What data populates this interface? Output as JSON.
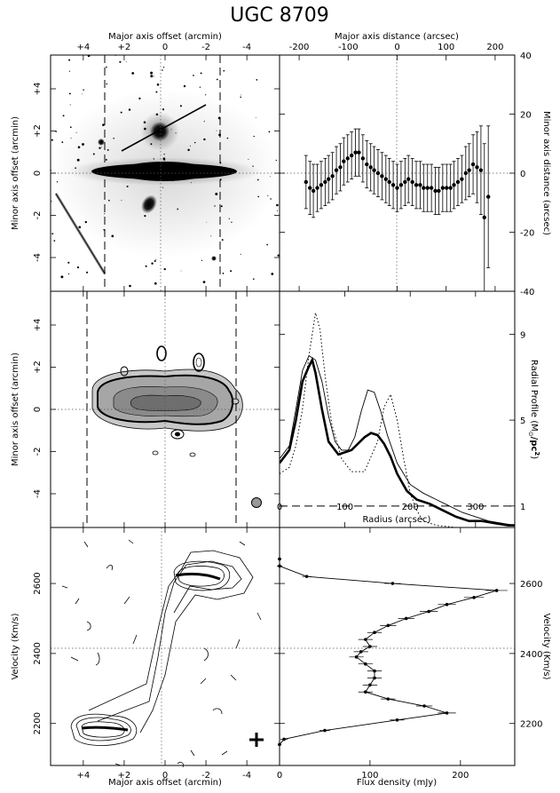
{
  "title": "UGC 8709",
  "chart_data": [
    {
      "panel": "optical-image",
      "type": "image",
      "xlabel_top": "Major axis offset (arcmin)",
      "ylabel": "Minor axis offset (arcmin)",
      "xlim": [
        5.6,
        -5.6
      ],
      "ylim": [
        -5.6,
        5.6
      ],
      "xticks": [
        "+4",
        "+2",
        "0",
        "-2",
        "-4"
      ],
      "yticks": [
        "+4",
        "+2",
        "0",
        "-2",
        "-4"
      ]
    },
    {
      "panel": "warp-offset",
      "type": "scatter",
      "xlabel_top": "Major axis distance (arcsec)",
      "ylabel": "Minor axis distance (arcsec)",
      "xlim": [
        -240,
        240
      ],
      "ylim": [
        -40,
        40
      ],
      "xticks": [
        "-200",
        "-100",
        "0",
        "100",
        "200"
      ],
      "yticks": [
        "40",
        "20",
        "0",
        "-20",
        "-40"
      ],
      "x": [
        -186,
        -178,
        -171,
        -163,
        -155,
        -147,
        -140,
        -132,
        -124,
        -116,
        -109,
        -101,
        -93,
        -85,
        -78,
        -70,
        -62,
        -54,
        -47,
        -39,
        -31,
        -23,
        -16,
        -8,
        0,
        8,
        16,
        23,
        31,
        39,
        47,
        54,
        62,
        70,
        78,
        85,
        93,
        101,
        109,
        116,
        124,
        132,
        140,
        147,
        155,
        163,
        171,
        178,
        186
      ],
      "y": [
        -3,
        -5,
        -6,
        -5,
        -4,
        -3,
        -2,
        -1,
        1,
        2,
        4,
        5,
        6,
        7,
        7,
        5,
        3,
        2,
        1,
        0,
        -1,
        -2,
        -3,
        -4,
        -5,
        -4,
        -3,
        -2,
        -3,
        -4,
        -4,
        -5,
        -5,
        -5,
        -6,
        -6,
        -5,
        -5,
        -5,
        -4,
        -3,
        -2,
        0,
        1,
        3,
        2,
        1,
        -15,
        -8
      ],
      "yerr": [
        9,
        9,
        9,
        8,
        8,
        8,
        8,
        8,
        8,
        8,
        8,
        8,
        8,
        8,
        8,
        8,
        8,
        8,
        8,
        8,
        8,
        8,
        8,
        8,
        8,
        8,
        8,
        8,
        8,
        8,
        8,
        8,
        8,
        8,
        8,
        8,
        8,
        8,
        8,
        8,
        8,
        8,
        9,
        9,
        10,
        12,
        15,
        25,
        24
      ]
    },
    {
      "panel": "hi-total-intensity",
      "type": "contour",
      "ylabel": "Minor axis offset (arcmin)",
      "xlim": [
        5.6,
        -5.6
      ],
      "ylim": [
        -5.6,
        5.6
      ],
      "yticks": [
        "+4",
        "+2",
        "0",
        "-2",
        "-4"
      ]
    },
    {
      "panel": "radial-profile",
      "type": "line",
      "xlabel": "Radius (arcsec)",
      "ylabel": "Radial Profile (M",
      "ylabel_sub": "⊙",
      "ylabel_tail": "/pc",
      "ylabel_sup": "2",
      "ylabel_close": ")",
      "xlim": [
        0,
        360
      ],
      "ylim": [
        0,
        11
      ],
      "xticks": [
        "0",
        "100",
        "200",
        "300"
      ],
      "yticks": [
        "1",
        "5",
        "9"
      ],
      "hline": 1,
      "series": [
        {
          "style": "thick",
          "x": [
            0,
            15,
            25,
            35,
            45,
            50,
            55,
            65,
            75,
            90,
            110,
            130,
            140,
            150,
            160,
            170,
            180,
            195,
            210,
            230,
            250,
            270,
            290,
            310,
            330,
            350,
            360
          ],
          "y": [
            3.0,
            3.6,
            5.0,
            6.8,
            7.5,
            7.8,
            7.2,
            5.5,
            4.0,
            3.4,
            3.6,
            4.2,
            4.4,
            4.3,
            3.9,
            3.3,
            2.5,
            1.7,
            1.3,
            1.1,
            0.8,
            0.5,
            0.3,
            0.3,
            0.2,
            0.1,
            0.1
          ]
        },
        {
          "style": "thin",
          "x": [
            0,
            15,
            25,
            35,
            45,
            55,
            65,
            75,
            85,
            95,
            105,
            115,
            125,
            135,
            145,
            155,
            165,
            180,
            200,
            220,
            240,
            260,
            280,
            300,
            320,
            340,
            360
          ],
          "y": [
            3.2,
            3.8,
            5.5,
            7.3,
            8.0,
            7.8,
            6.8,
            5.2,
            4.0,
            3.6,
            3.6,
            4.2,
            5.4,
            6.4,
            6.3,
            5.4,
            4.3,
            3.0,
            2.0,
            1.6,
            1.3,
            1.0,
            0.7,
            0.5,
            0.3,
            0.2,
            0.1
          ]
        },
        {
          "style": "dotted",
          "x": [
            0,
            15,
            25,
            35,
            45,
            55,
            62,
            70,
            80,
            95,
            110,
            130,
            150,
            160,
            170,
            180,
            190,
            200,
            210,
            220,
            240,
            270,
            300
          ],
          "y": [
            2.5,
            2.8,
            3.8,
            5.5,
            8.0,
            10.0,
            9.2,
            7.0,
            4.8,
            3.2,
            2.6,
            2.6,
            4.0,
            5.6,
            6.2,
            5.0,
            3.2,
            1.6,
            0.8,
            0.3,
            0.1,
            0.0,
            0.0
          ]
        }
      ]
    },
    {
      "panel": "position-velocity",
      "type": "contour",
      "xlabel": "Major axis offset (arcmin)",
      "ylabel": "Velocity (Km/s)",
      "xlim": [
        5.6,
        -5.6
      ],
      "ylim": [
        2080,
        2760
      ],
      "xticks": [
        "+4",
        "+2",
        "0",
        "-2",
        "-4"
      ],
      "yticks": [
        "2600",
        "2400",
        "2200"
      ]
    },
    {
      "panel": "global-profile",
      "type": "line",
      "xlabel": "Flux density (mJy)",
      "ylabel": "Velocity (Km/s)",
      "xlim": [
        0,
        260
      ],
      "ylim": [
        2080,
        2760
      ],
      "xticks": [
        "0",
        "100",
        "200"
      ],
      "yticks": [
        "2600",
        "2400",
        "2200"
      ],
      "systemic_velocity": 2415,
      "v": [
        2140,
        2155,
        2180,
        2210,
        2230,
        2250,
        2270,
        2290,
        2310,
        2330,
        2350,
        2370,
        2390,
        2405,
        2420,
        2440,
        2460,
        2480,
        2500,
        2520,
        2540,
        2560,
        2580,
        2600,
        2620,
        2650,
        2670
      ],
      "flux": [
        0,
        5,
        50,
        130,
        185,
        160,
        120,
        95,
        100,
        105,
        105,
        95,
        85,
        90,
        100,
        95,
        105,
        120,
        140,
        165,
        185,
        215,
        240,
        125,
        30,
        0,
        0
      ],
      "xerr": [
        2,
        4,
        6,
        8,
        10,
        9,
        8,
        8,
        8,
        8,
        8,
        8,
        8,
        8,
        8,
        8,
        8,
        9,
        9,
        10,
        10,
        11,
        12,
        9,
        5,
        3,
        2
      ]
    }
  ]
}
